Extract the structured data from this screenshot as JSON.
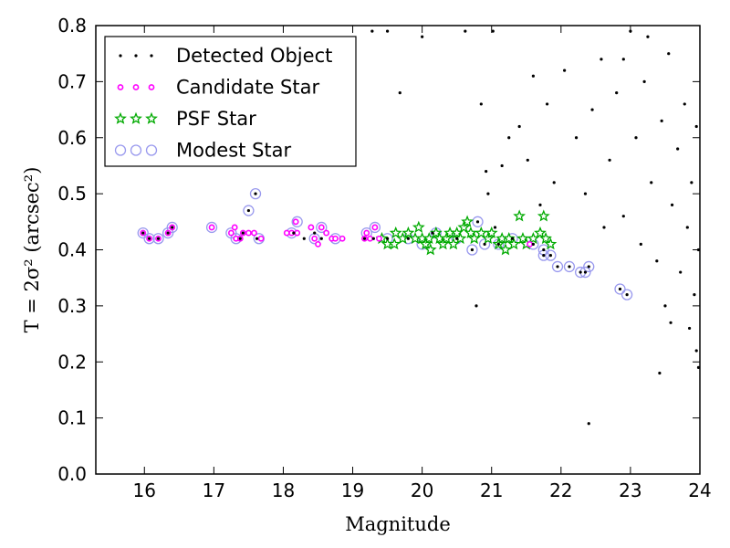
{
  "chart_data": {
    "type": "scatter",
    "title": "",
    "xlabel": "Magnitude",
    "ylabel": "T = 2σ² (arcsec²)",
    "xlim": [
      15.3,
      24.0
    ],
    "ylim": [
      0.0,
      0.8
    ],
    "xticks": [
      "16",
      "17",
      "18",
      "19",
      "20",
      "21",
      "22",
      "23",
      "24"
    ],
    "yticks": [
      "0.0",
      "0.1",
      "0.2",
      "0.3",
      "0.4",
      "0.5",
      "0.6",
      "0.7",
      "0.8"
    ],
    "legend_position": "top-left",
    "series": [
      {
        "name": "Detected Object",
        "color": "#000000",
        "marker": "dot",
        "points": [
          [
            15.98,
            0.43
          ],
          [
            16.07,
            0.42
          ],
          [
            16.2,
            0.42
          ],
          [
            16.34,
            0.43
          ],
          [
            16.4,
            0.44
          ],
          [
            17.38,
            0.42
          ],
          [
            17.42,
            0.43
          ],
          [
            17.5,
            0.47
          ],
          [
            17.6,
            0.5
          ],
          [
            17.62,
            0.42
          ],
          [
            18.15,
            0.43
          ],
          [
            18.3,
            0.42
          ],
          [
            18.45,
            0.43
          ],
          [
            18.55,
            0.42
          ],
          [
            19.17,
            0.42
          ],
          [
            19.3,
            0.42
          ],
          [
            19.5,
            0.42
          ],
          [
            19.8,
            0.42
          ],
          [
            20.15,
            0.43
          ],
          [
            20.5,
            0.42
          ],
          [
            20.72,
            0.4
          ],
          [
            20.8,
            0.45
          ],
          [
            20.9,
            0.41
          ],
          [
            21.1,
            0.41
          ],
          [
            21.3,
            0.42
          ],
          [
            21.6,
            0.41
          ],
          [
            21.75,
            0.4
          ],
          [
            21.75,
            0.39
          ],
          [
            21.85,
            0.39
          ],
          [
            21.95,
            0.37
          ],
          [
            22.12,
            0.37
          ],
          [
            22.28,
            0.36
          ],
          [
            22.35,
            0.36
          ],
          [
            22.4,
            0.37
          ],
          [
            22.85,
            0.33
          ],
          [
            22.95,
            0.32
          ],
          [
            20.78,
            0.3
          ],
          [
            22.4,
            0.09
          ],
          [
            19.28,
            0.79
          ],
          [
            19.5,
            0.79
          ],
          [
            20.0,
            0.78
          ],
          [
            19.68,
            0.68
          ],
          [
            21.15,
            0.55
          ],
          [
            20.62,
            0.79
          ],
          [
            21.02,
            0.79
          ],
          [
            20.85,
            0.66
          ],
          [
            20.92,
            0.54
          ],
          [
            20.95,
            0.5
          ],
          [
            21.25,
            0.6
          ],
          [
            21.4,
            0.62
          ],
          [
            21.52,
            0.56
          ],
          [
            21.6,
            0.71
          ],
          [
            21.7,
            0.48
          ],
          [
            21.8,
            0.66
          ],
          [
            21.9,
            0.52
          ],
          [
            22.05,
            0.72
          ],
          [
            22.22,
            0.6
          ],
          [
            22.35,
            0.5
          ],
          [
            22.45,
            0.65
          ],
          [
            22.58,
            0.74
          ],
          [
            22.62,
            0.44
          ],
          [
            22.7,
            0.56
          ],
          [
            22.8,
            0.68
          ],
          [
            22.9,
            0.46
          ],
          [
            23.0,
            0.79
          ],
          [
            23.08,
            0.6
          ],
          [
            23.15,
            0.41
          ],
          [
            23.2,
            0.7
          ],
          [
            23.3,
            0.52
          ],
          [
            23.38,
            0.38
          ],
          [
            23.45,
            0.63
          ],
          [
            23.5,
            0.3
          ],
          [
            23.55,
            0.75
          ],
          [
            23.6,
            0.48
          ],
          [
            23.68,
            0.58
          ],
          [
            23.72,
            0.36
          ],
          [
            23.78,
            0.66
          ],
          [
            23.82,
            0.44
          ],
          [
            23.88,
            0.52
          ],
          [
            23.92,
            0.32
          ],
          [
            23.95,
            0.62
          ],
          [
            23.98,
            0.4
          ],
          [
            23.42,
            0.18
          ],
          [
            23.98,
            0.19
          ],
          [
            23.95,
            0.22
          ],
          [
            23.85,
            0.26
          ],
          [
            23.58,
            0.27
          ],
          [
            21.05,
            0.44
          ],
          [
            22.9,
            0.74
          ],
          [
            23.25,
            0.78
          ]
        ]
      },
      {
        "name": "Candidate Star",
        "color": "#ff00ff",
        "marker": "circle",
        "points": [
          [
            15.98,
            0.43
          ],
          [
            16.07,
            0.42
          ],
          [
            16.2,
            0.42
          ],
          [
            16.34,
            0.43
          ],
          [
            16.4,
            0.44
          ],
          [
            16.97,
            0.44
          ],
          [
            17.25,
            0.43
          ],
          [
            17.3,
            0.44
          ],
          [
            17.32,
            0.42
          ],
          [
            17.38,
            0.42
          ],
          [
            17.42,
            0.43
          ],
          [
            17.5,
            0.43
          ],
          [
            17.58,
            0.43
          ],
          [
            17.68,
            0.42
          ],
          [
            18.05,
            0.43
          ],
          [
            18.12,
            0.43
          ],
          [
            18.18,
            0.45
          ],
          [
            18.2,
            0.43
          ],
          [
            18.4,
            0.44
          ],
          [
            18.45,
            0.42
          ],
          [
            18.5,
            0.41
          ],
          [
            18.55,
            0.44
          ],
          [
            18.62,
            0.43
          ],
          [
            18.7,
            0.42
          ],
          [
            18.75,
            0.42
          ],
          [
            18.85,
            0.42
          ],
          [
            19.17,
            0.42
          ],
          [
            19.2,
            0.43
          ],
          [
            19.25,
            0.42
          ],
          [
            19.32,
            0.44
          ],
          [
            19.38,
            0.42
          ],
          [
            21.55,
            0.41
          ]
        ]
      },
      {
        "name": "PSF Star",
        "color": "#00aa00",
        "marker": "star",
        "points": [
          [
            19.42,
            0.42
          ],
          [
            19.5,
            0.41
          ],
          [
            19.6,
            0.41
          ],
          [
            19.62,
            0.43
          ],
          [
            19.72,
            0.42
          ],
          [
            19.8,
            0.43
          ],
          [
            19.9,
            0.42
          ],
          [
            19.95,
            0.44
          ],
          [
            20.0,
            0.42
          ],
          [
            20.05,
            0.41
          ],
          [
            20.1,
            0.42
          ],
          [
            20.12,
            0.4
          ],
          [
            20.2,
            0.43
          ],
          [
            20.25,
            0.42
          ],
          [
            20.3,
            0.41
          ],
          [
            20.35,
            0.42
          ],
          [
            20.4,
            0.43
          ],
          [
            20.45,
            0.41
          ],
          [
            20.5,
            0.43
          ],
          [
            20.55,
            0.42
          ],
          [
            20.6,
            0.44
          ],
          [
            20.65,
            0.45
          ],
          [
            20.7,
            0.43
          ],
          [
            20.75,
            0.42
          ],
          [
            20.85,
            0.43
          ],
          [
            20.95,
            0.42
          ],
          [
            21.0,
            0.43
          ],
          [
            21.1,
            0.41
          ],
          [
            21.15,
            0.42
          ],
          [
            21.2,
            0.4
          ],
          [
            21.25,
            0.42
          ],
          [
            21.32,
            0.41
          ],
          [
            21.4,
            0.46
          ],
          [
            21.45,
            0.42
          ],
          [
            21.5,
            0.41
          ],
          [
            21.6,
            0.42
          ],
          [
            21.7,
            0.43
          ],
          [
            21.75,
            0.46
          ],
          [
            21.78,
            0.42
          ],
          [
            21.85,
            0.41
          ]
        ]
      },
      {
        "name": "Modest Star",
        "color": "#9999ee",
        "marker": "ring",
        "points": [
          [
            15.98,
            0.43
          ],
          [
            16.07,
            0.42
          ],
          [
            16.2,
            0.42
          ],
          [
            16.34,
            0.43
          ],
          [
            16.4,
            0.44
          ],
          [
            16.97,
            0.44
          ],
          [
            17.25,
            0.43
          ],
          [
            17.32,
            0.42
          ],
          [
            17.5,
            0.47
          ],
          [
            17.6,
            0.5
          ],
          [
            17.65,
            0.42
          ],
          [
            18.12,
            0.43
          ],
          [
            18.2,
            0.45
          ],
          [
            18.45,
            0.42
          ],
          [
            18.55,
            0.44
          ],
          [
            18.75,
            0.42
          ],
          [
            19.2,
            0.43
          ],
          [
            19.32,
            0.44
          ],
          [
            19.5,
            0.42
          ],
          [
            19.8,
            0.42
          ],
          [
            20.0,
            0.41
          ],
          [
            20.2,
            0.43
          ],
          [
            20.5,
            0.42
          ],
          [
            20.72,
            0.4
          ],
          [
            20.8,
            0.45
          ],
          [
            20.9,
            0.41
          ],
          [
            21.1,
            0.41
          ],
          [
            21.3,
            0.42
          ],
          [
            21.6,
            0.41
          ],
          [
            21.75,
            0.4
          ],
          [
            21.75,
            0.39
          ],
          [
            21.85,
            0.39
          ],
          [
            21.95,
            0.37
          ],
          [
            22.12,
            0.37
          ],
          [
            22.28,
            0.36
          ],
          [
            22.35,
            0.36
          ],
          [
            22.4,
            0.37
          ],
          [
            22.85,
            0.33
          ],
          [
            22.95,
            0.32
          ]
        ]
      }
    ]
  }
}
